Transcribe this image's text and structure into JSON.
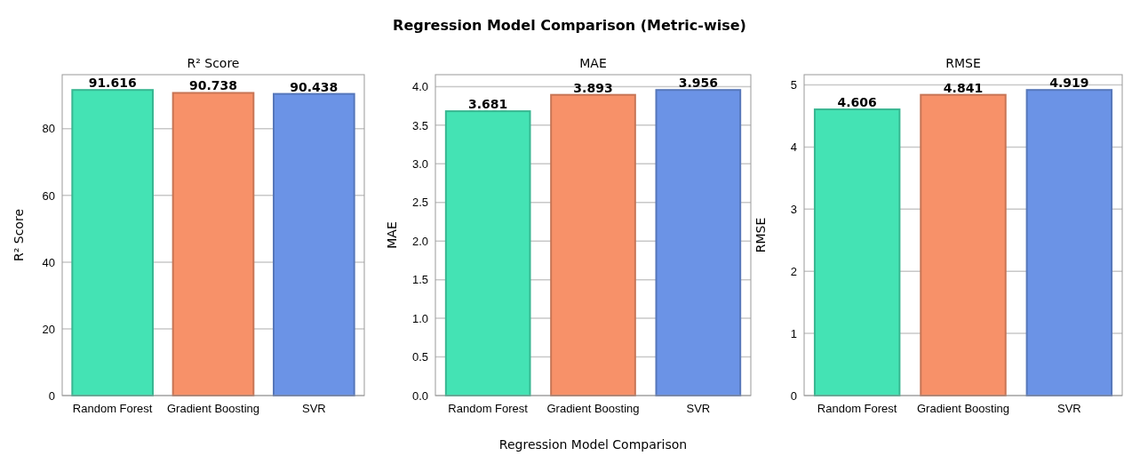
{
  "chart_data": [
    {
      "type": "bar",
      "title": "R² Score",
      "ylabel": "R² Score",
      "annotations": [
        "Regression Model Comparison (Metric-wise)"
      ],
      "categories": [
        "Random Forest",
        "Gradient Boosting",
        "SVR"
      ],
      "values": [
        91.616,
        90.738,
        90.438
      ],
      "colors": [
        "#44e3b4",
        "#f79169",
        "#6b93e6"
      ],
      "ylim": [
        0,
        96.2
      ],
      "yticks": [
        0,
        20,
        40,
        60,
        80
      ],
      "grid": "y",
      "data_labels": true
    },
    {
      "type": "bar",
      "title": "MAE",
      "ylabel": "MAE",
      "xlabel": "Regression Model Comparison",
      "categories": [
        "Random Forest",
        "Gradient Boosting",
        "SVR"
      ],
      "values": [
        3.681,
        3.893,
        3.956
      ],
      "colors": [
        "#44e3b4",
        "#f79169",
        "#6b93e6"
      ],
      "ylim": [
        0,
        4.154
      ],
      "yticks": [
        {
          "value": 0,
          "label": "0.0"
        },
        {
          "value": 0.5,
          "label": "0.5"
        },
        {
          "value": 1,
          "label": "1.0"
        },
        {
          "value": 1.5,
          "label": "1.5"
        },
        {
          "value": 2,
          "label": "2.0"
        },
        {
          "value": 2.5,
          "label": "2.5"
        },
        {
          "value": 3,
          "label": "3.0"
        },
        {
          "value": 3.5,
          "label": "3.5"
        },
        {
          "value": 4,
          "label": "4.0"
        }
      ],
      "grid": "y",
      "data_labels": true
    },
    {
      "type": "bar",
      "title": "RMSE",
      "ylabel": "RMSE",
      "categories": [
        "Random Forest",
        "Gradient Boosting",
        "SVR"
      ],
      "values": [
        4.606,
        4.841,
        4.919
      ],
      "colors": [
        "#44e3b4",
        "#f79169",
        "#6b93e6"
      ],
      "ylim": [
        0,
        5.165
      ],
      "yticks": [
        0,
        1,
        2,
        3,
        4,
        5
      ],
      "grid": "y",
      "data_labels": true
    }
  ]
}
